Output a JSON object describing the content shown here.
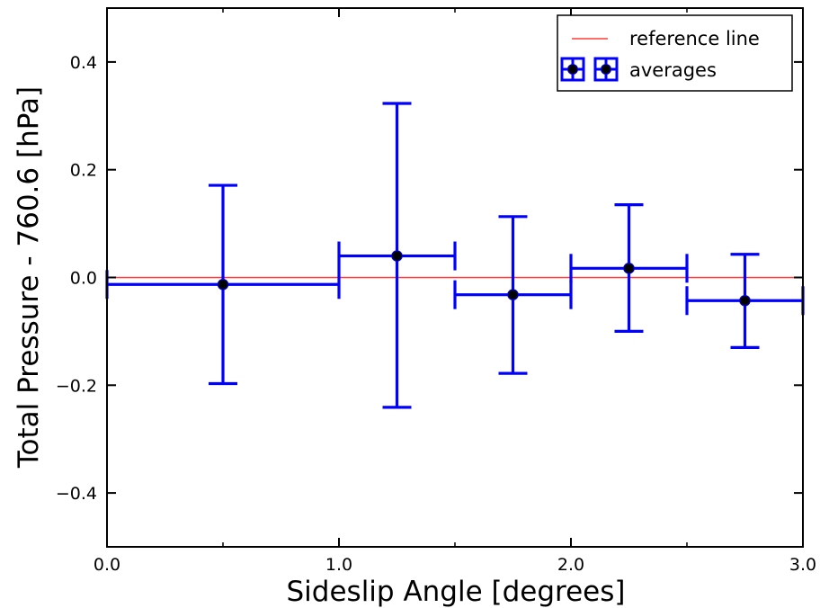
{
  "chart_data": {
    "type": "scatter",
    "title": "",
    "xlabel": "Sideslip Angle [degrees]",
    "ylabel": "Total Pressure - 760.6 [hPa]",
    "xlim": [
      0.0,
      3.0
    ],
    "ylim": [
      -0.5,
      0.5
    ],
    "x_ticks": [
      {
        "value": 0.0,
        "label": "0.0"
      },
      {
        "value": 1.0,
        "label": "1.0"
      },
      {
        "value": 2.0,
        "label": "2.0"
      },
      {
        "value": 3.0,
        "label": "3.0"
      }
    ],
    "y_ticks": [
      {
        "value": 0.4,
        "label": "0.4"
      },
      {
        "value": 0.2,
        "label": "0.2"
      },
      {
        "value": 0.0,
        "label": "0.0"
      },
      {
        "value": -0.2,
        "label": "−0.2"
      },
      {
        "value": -0.4,
        "label": "−0.4"
      }
    ],
    "grid": false,
    "legend_position": "top-right",
    "series": [
      {
        "name": "reference line",
        "kind": "line",
        "color": "#ff3b3b",
        "x": [
          0.0,
          3.0
        ],
        "y": [
          0.0,
          0.0
        ]
      },
      {
        "name": "averages",
        "kind": "errorbar",
        "color": "#0000ff",
        "marker_color": "#000000",
        "points": [
          {
            "x": 0.5,
            "y": -0.013,
            "xmin": 0.0,
            "xmax": 1.0,
            "ymin": -0.197,
            "ymax": 0.171
          },
          {
            "x": 1.25,
            "y": 0.04,
            "xmin": 1.0,
            "xmax": 1.5,
            "ymin": -0.241,
            "ymax": 0.323
          },
          {
            "x": 1.75,
            "y": -0.032,
            "xmin": 1.5,
            "xmax": 2.0,
            "ymin": -0.178,
            "ymax": 0.113
          },
          {
            "x": 2.25,
            "y": 0.017,
            "xmin": 2.0,
            "xmax": 2.5,
            "ymin": -0.1,
            "ymax": 0.135
          },
          {
            "x": 2.75,
            "y": -0.043,
            "xmin": 2.5,
            "xmax": 3.0,
            "ymin": -0.13,
            "ymax": 0.043
          }
        ]
      }
    ]
  }
}
